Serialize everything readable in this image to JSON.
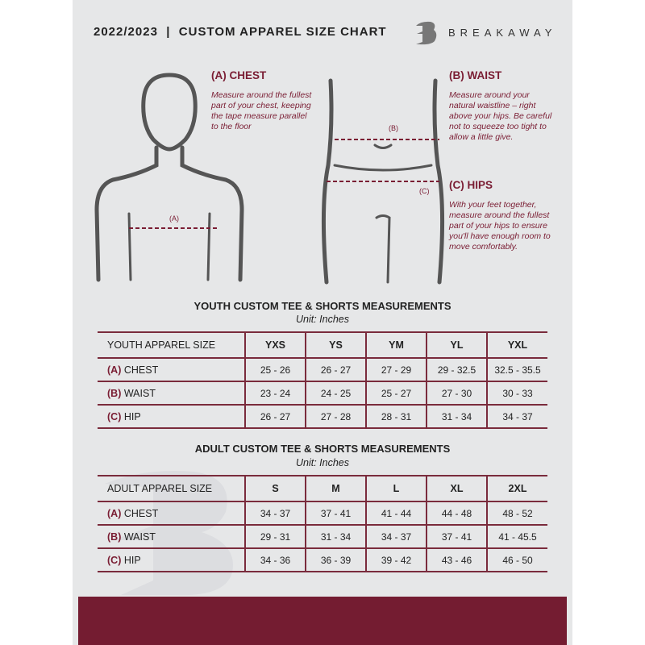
{
  "header": {
    "title": "2022/2023  |  CUSTOM APPAREL SIZE CHART",
    "brand": "BREAKAWAY"
  },
  "measure": {
    "chest": {
      "heading": "(A) CHEST",
      "desc": "Measure around the fullest part of your chest, keeping the tape measure parallel to the floor",
      "marker": "(A)"
    },
    "waist": {
      "heading": "(B) WAIST",
      "desc": "Measure around your natural waistline – right above your hips. Be careful not to squeeze too tight to allow a little give.",
      "marker": "(B)"
    },
    "hips": {
      "heading": "(C) HIPS",
      "desc": "With your feet together, measure around the fullest part of your hips to ensure you'll have enough room to move comfortably.",
      "marker": "(C)"
    }
  },
  "youth": {
    "title": "YOUTH CUSTOM TEE & SHORTS MEASUREMENTS",
    "unit": "Unit: Inches",
    "size_label": "YOUTH APPAREL SIZE",
    "sizes": [
      "YXS",
      "YS",
      "YM",
      "YL",
      "YXL"
    ],
    "rows": [
      {
        "letter": "(A)",
        "name": "CHEST",
        "values": [
          "25 - 26",
          "26 - 27",
          "27 - 29",
          "29 - 32.5",
          "32.5 - 35.5"
        ]
      },
      {
        "letter": "(B)",
        "name": "WAIST",
        "values": [
          "23 - 24",
          "24 - 25",
          "25 - 27",
          "27 - 30",
          "30 - 33"
        ]
      },
      {
        "letter": "(C)",
        "name": "HIP",
        "values": [
          "26 - 27",
          "27 - 28",
          "28 - 31",
          "31 - 34",
          "34 - 37"
        ]
      }
    ]
  },
  "adult": {
    "title": "ADULT CUSTOM TEE & SHORTS MEASUREMENTS",
    "unit": "Unit: Inches",
    "size_label": "ADULT APPAREL SIZE",
    "sizes": [
      "S",
      "M",
      "L",
      "XL",
      "2XL"
    ],
    "rows": [
      {
        "letter": "(A)",
        "name": "CHEST",
        "values": [
          "34 - 37",
          "37 - 41",
          "41 - 44",
          "44 - 48",
          "48 - 52"
        ]
      },
      {
        "letter": "(B)",
        "name": "WAIST",
        "values": [
          "29 - 31",
          "31 - 34",
          "34 - 37",
          "37 - 41",
          "41 - 45.5"
        ]
      },
      {
        "letter": "(C)",
        "name": "HIP",
        "values": [
          "34 - 36",
          "36 - 39",
          "39 - 42",
          "43 - 46",
          "46 - 50"
        ]
      }
    ]
  },
  "colors": {
    "accent": "#7a1d33",
    "footer": "#741c31",
    "panel": "#e6e7e8"
  }
}
